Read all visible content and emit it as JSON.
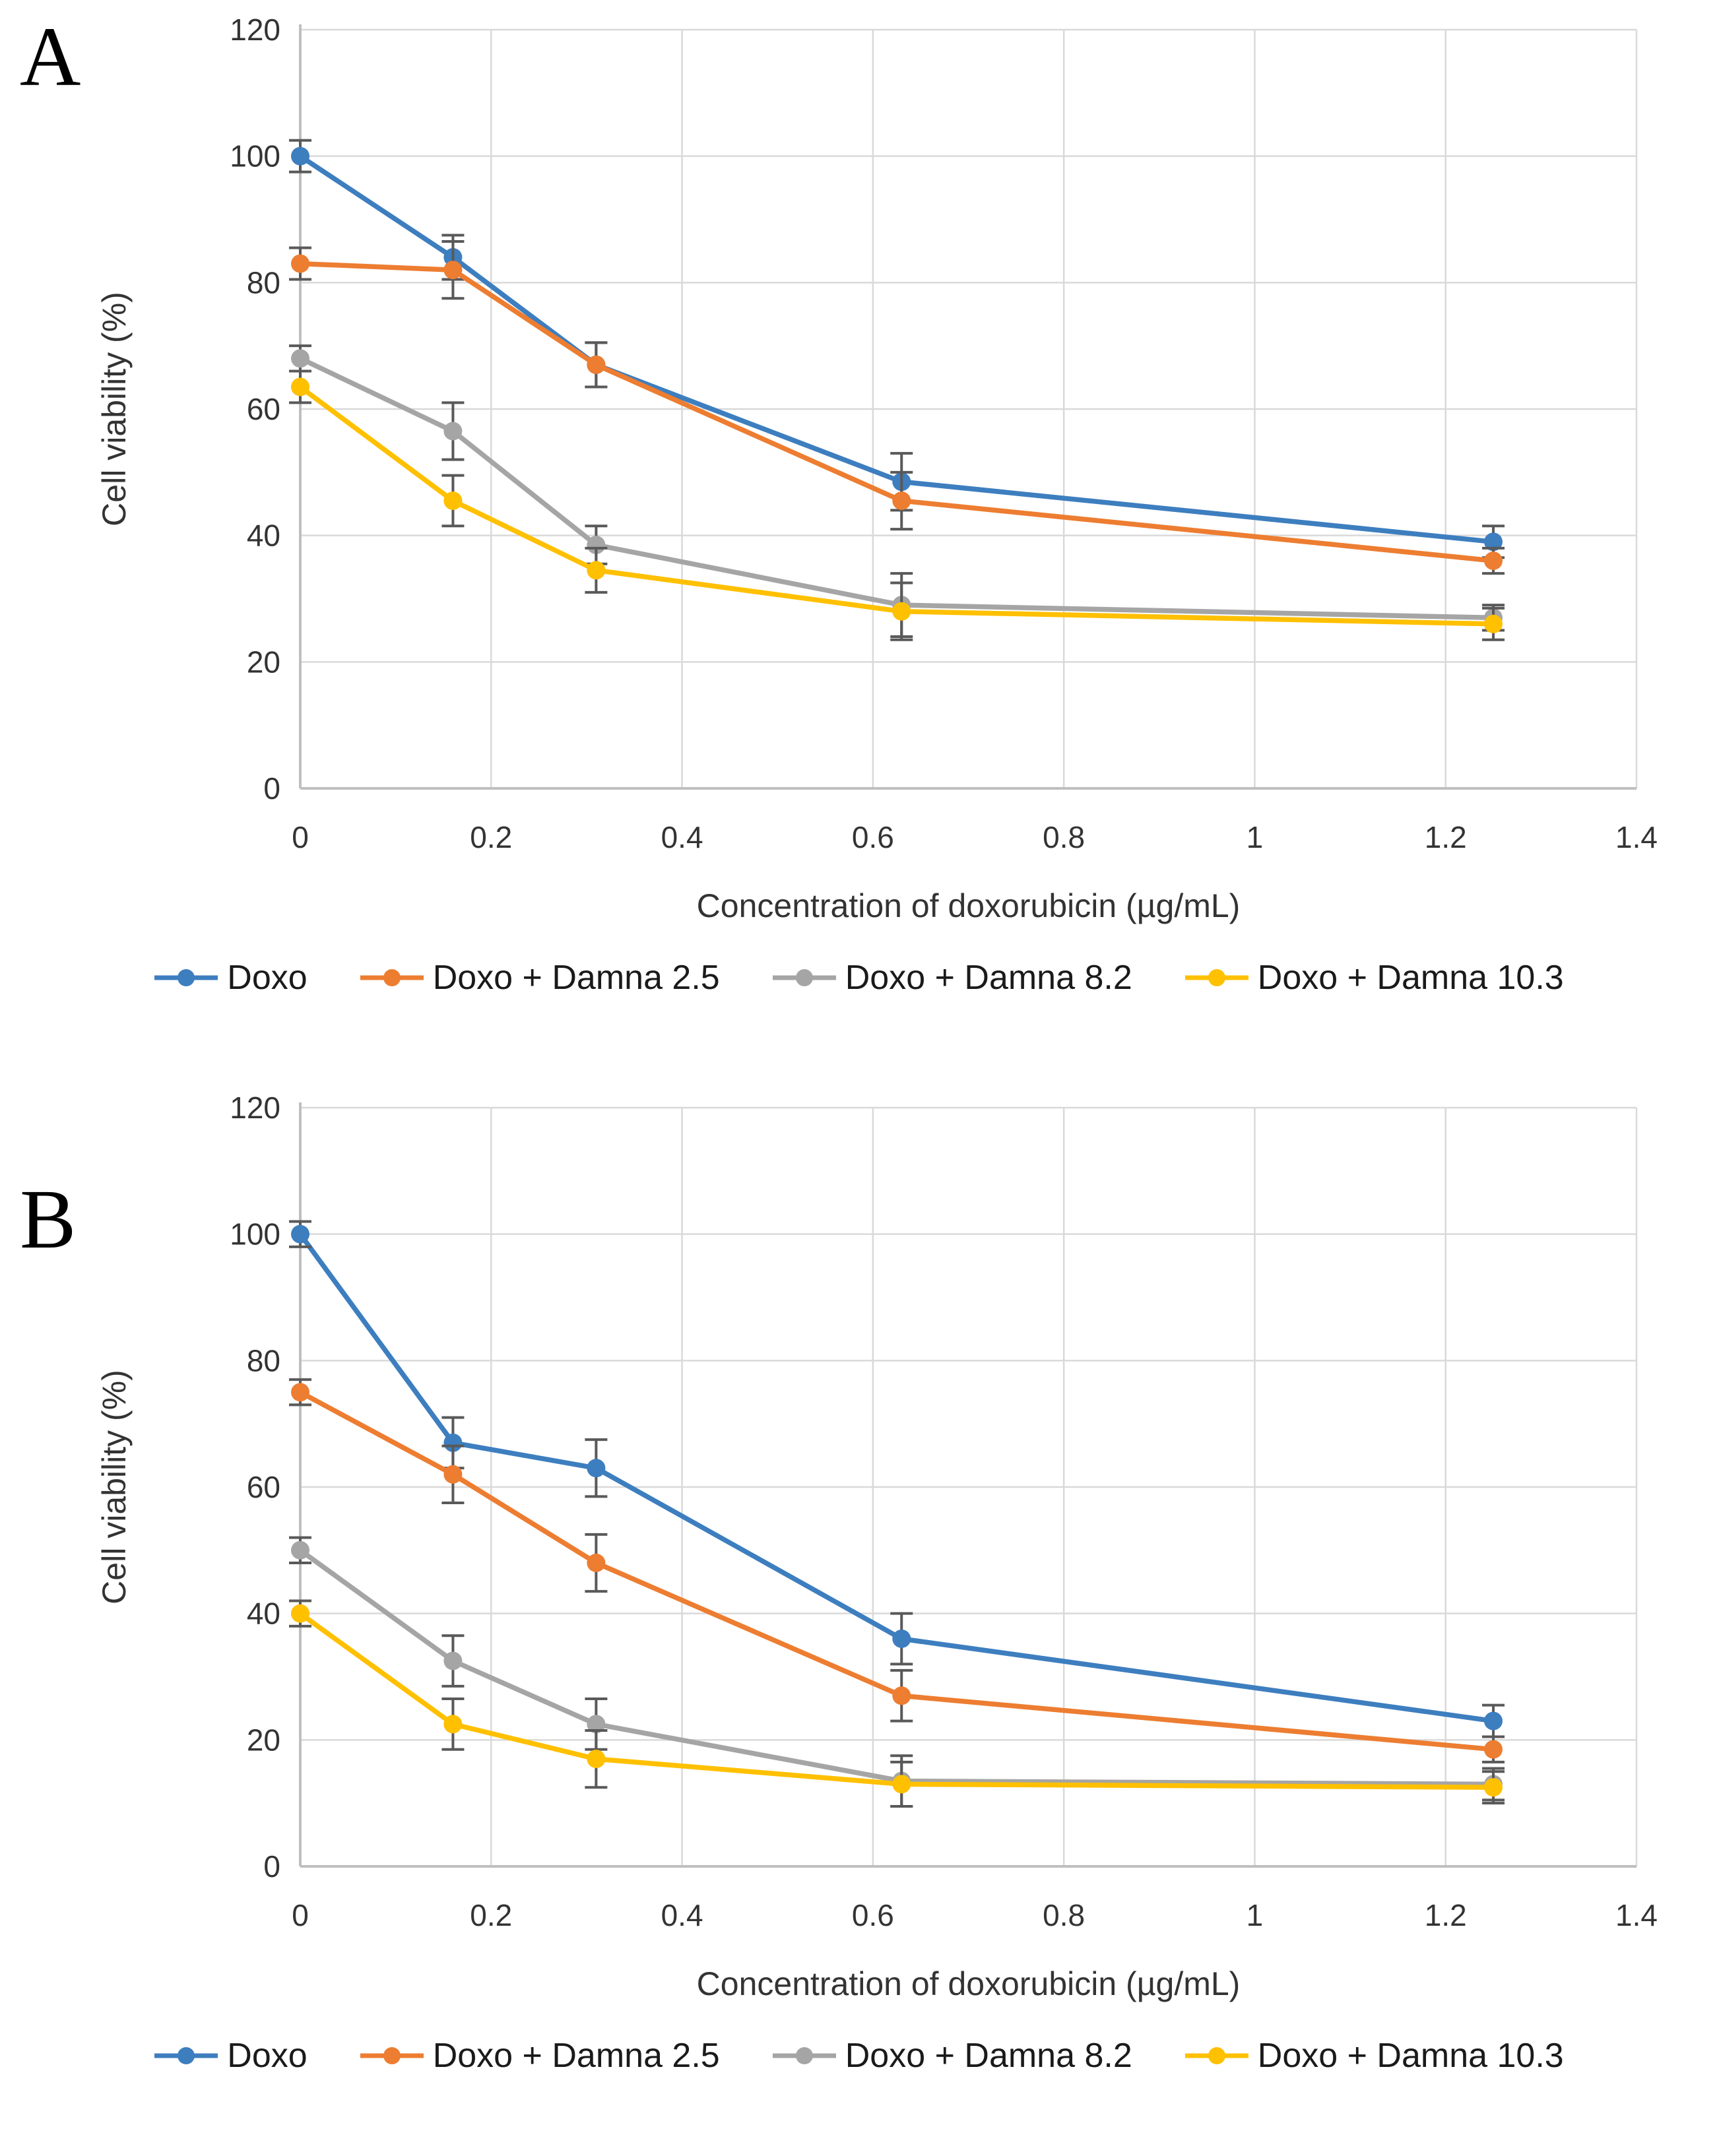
{
  "palette": {
    "grid": "#D9D9D9",
    "axis": "#BFBFBF",
    "error_bar": "#595959",
    "text": "#333333",
    "background": "#FFFFFF"
  },
  "panels": [
    {
      "label": "A"
    },
    {
      "label": "B"
    }
  ],
  "chart_data": [
    {
      "type": "line",
      "title": "",
      "xlabel": "Concentration of doxorubicin (µg/mL)",
      "ylabel": "Cell viability (%)",
      "xlim": [
        0,
        1.4
      ],
      "ylim": [
        0,
        120
      ],
      "xticks": [
        0,
        0.2,
        0.4,
        0.6,
        0.8,
        1,
        1.2,
        1.4
      ],
      "yticks": [
        0,
        20,
        40,
        60,
        80,
        100,
        120
      ],
      "grid": true,
      "legend_position": "bottom",
      "x": [
        0,
        0.16,
        0.31,
        0.63,
        1.25
      ],
      "series": [
        {
          "name": "Doxo",
          "color": "#3D7EBF",
          "values": [
            100,
            84,
            67,
            48.5,
            39
          ],
          "errors": [
            2.5,
            3.5,
            3.5,
            4.5,
            2.5
          ]
        },
        {
          "name": "Doxo + Damna 2.5",
          "color": "#ED7D31",
          "values": [
            83,
            82,
            67,
            45.5,
            36
          ],
          "errors": [
            2.5,
            4.5,
            3.5,
            4.5,
            2
          ]
        },
        {
          "name": "Doxo + Damna 8.2",
          "color": "#A5A5A5",
          "values": [
            68,
            56.5,
            38.5,
            29,
            27
          ],
          "errors": [
            2,
            4.5,
            3,
            5,
            2
          ]
        },
        {
          "name": "Doxo + Damna 10.3",
          "color": "#FFC000",
          "values": [
            63.5,
            45.5,
            34.5,
            28,
            26
          ],
          "errors": [
            2.5,
            4,
            3.5,
            4.5,
            2.5
          ]
        }
      ]
    },
    {
      "type": "line",
      "title": "",
      "xlabel": "Concentration of doxorubicin (µg/mL)",
      "ylabel": "Cell viability (%)",
      "xlim": [
        0,
        1.4
      ],
      "ylim": [
        0,
        120
      ],
      "xticks": [
        0,
        0.2,
        0.4,
        0.6,
        0.8,
        1,
        1.2,
        1.4
      ],
      "yticks": [
        0,
        20,
        40,
        60,
        80,
        100,
        120
      ],
      "grid": true,
      "legend_position": "bottom",
      "x": [
        0,
        0.16,
        0.31,
        0.63,
        1.25
      ],
      "series": [
        {
          "name": "Doxo",
          "color": "#3D7EBF",
          "values": [
            100,
            67,
            63,
            36,
            23
          ],
          "errors": [
            2,
            4,
            4.5,
            4,
            2.5
          ]
        },
        {
          "name": "Doxo + Damna 2.5",
          "color": "#ED7D31",
          "values": [
            75,
            62,
            48,
            27,
            18.5
          ],
          "errors": [
            2,
            4.5,
            4.5,
            4,
            2
          ]
        },
        {
          "name": "Doxo + Damna 8.2",
          "color": "#A5A5A5",
          "values": [
            50,
            32.5,
            22.5,
            13.5,
            13
          ],
          "errors": [
            2,
            4,
            4,
            4,
            2.5
          ]
        },
        {
          "name": "Doxo + Damna 10.3",
          "color": "#FFC000",
          "values": [
            40,
            22.5,
            17,
            13,
            12.5
          ],
          "errors": [
            2,
            4,
            4.5,
            3.5,
            2.5
          ]
        }
      ]
    }
  ]
}
